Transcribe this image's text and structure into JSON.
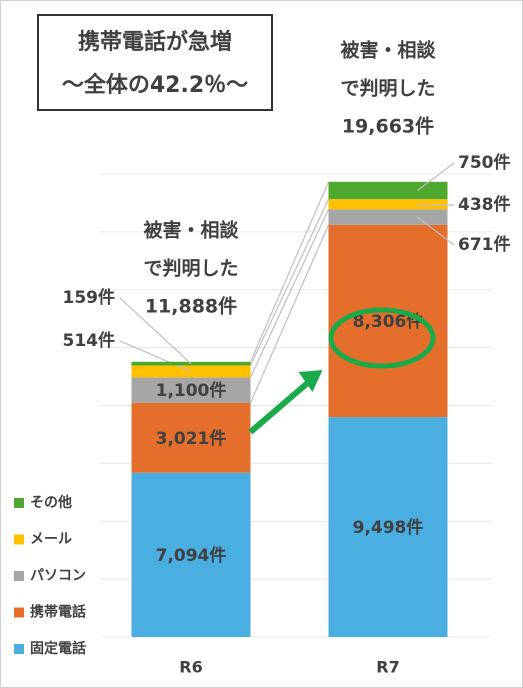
{
  "chart_data": {
    "type": "bar",
    "stacked": true,
    "title": "携帯電話が急増",
    "subtitle": "～全体の42.2％～",
    "categories": [
      "R6",
      "R7"
    ],
    "series": [
      {
        "name": "固定電話",
        "color": "#4aaee0",
        "values": [
          7094,
          9498
        ],
        "value_labels": [
          "7,094件",
          "9,498件"
        ]
      },
      {
        "name": "携帯電話",
        "color": "#e46f2c",
        "values": [
          3021,
          8306
        ],
        "value_labels": [
          "3,021件",
          "8,306件"
        ]
      },
      {
        "name": "パソコン",
        "color": "#a6a6a6",
        "values": [
          1100,
          671
        ],
        "value_labels": [
          "1,100件",
          "671件"
        ]
      },
      {
        "name": "メール",
        "color": "#ffc000",
        "values": [
          514,
          438
        ],
        "value_labels": [
          "514件",
          "438件"
        ]
      },
      {
        "name": "その他",
        "color": "#4ea72e",
        "values": [
          159,
          750
        ],
        "value_labels": [
          "159件",
          "750件"
        ]
      }
    ],
    "annotations": [
      {
        "lines": [
          "被害・相談",
          "で判明した"
        ],
        "value": 11888,
        "value_label": "11,888件"
      },
      {
        "lines": [
          "被害・相談",
          "で判明した"
        ],
        "value": 19663,
        "value_label": "19,663件"
      }
    ],
    "ylim": [
      0,
      20000
    ],
    "yticks": [
      0,
      2500,
      5000,
      7500,
      10000,
      12500,
      15000,
      17500,
      20000
    ],
    "grid": true
  }
}
